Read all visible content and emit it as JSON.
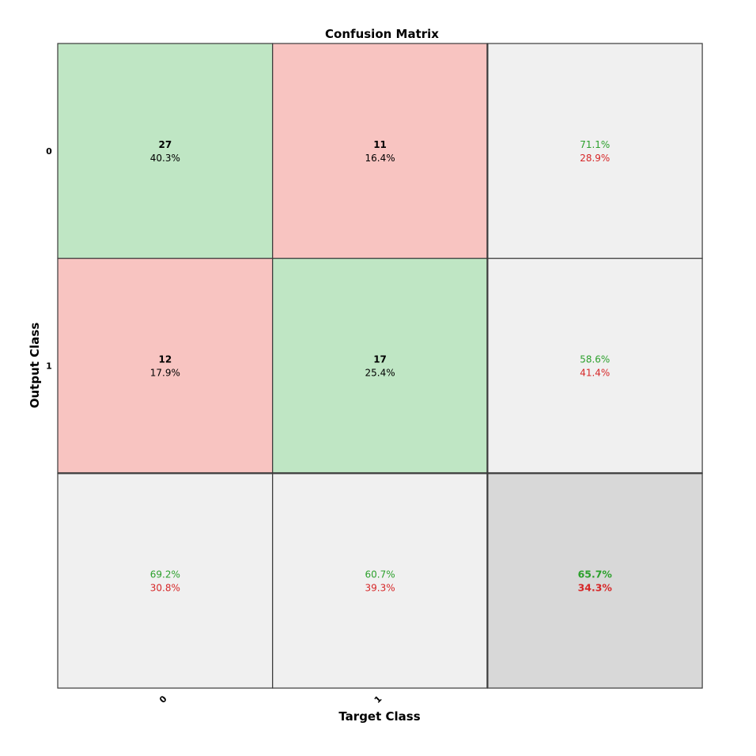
{
  "chart_data": {
    "type": "heatmap",
    "title": "Confusion Matrix",
    "xlabel": "Target Class",
    "ylabel": "Output Class",
    "classes": [
      "0",
      "1"
    ],
    "matrix": [
      [
        {
          "count": "27",
          "percent": "40.3%"
        },
        {
          "count": "11",
          "percent": "16.4%"
        }
      ],
      [
        {
          "count": "12",
          "percent": "17.9%"
        },
        {
          "count": "17",
          "percent": "25.4%"
        }
      ]
    ],
    "row_summary": [
      {
        "correct": "71.1%",
        "incorrect": "28.9%"
      },
      {
        "correct": "58.6%",
        "incorrect": "41.4%"
      }
    ],
    "column_summary": [
      {
        "correct": "69.2%",
        "incorrect": "30.8%"
      },
      {
        "correct": "60.7%",
        "incorrect": "39.3%"
      }
    ],
    "overall": {
      "correct": "65.7%",
      "incorrect": "34.3%"
    },
    "colors": {
      "correct_cell": "#bfe6c4",
      "incorrect_cell": "#f8c4c1",
      "summary_cell": "#f0f0f0",
      "overall_cell": "#d8d8d8",
      "correct_text": "#2ca02c",
      "incorrect_text": "#d62728",
      "grid_line": "#3a3a3a"
    }
  }
}
